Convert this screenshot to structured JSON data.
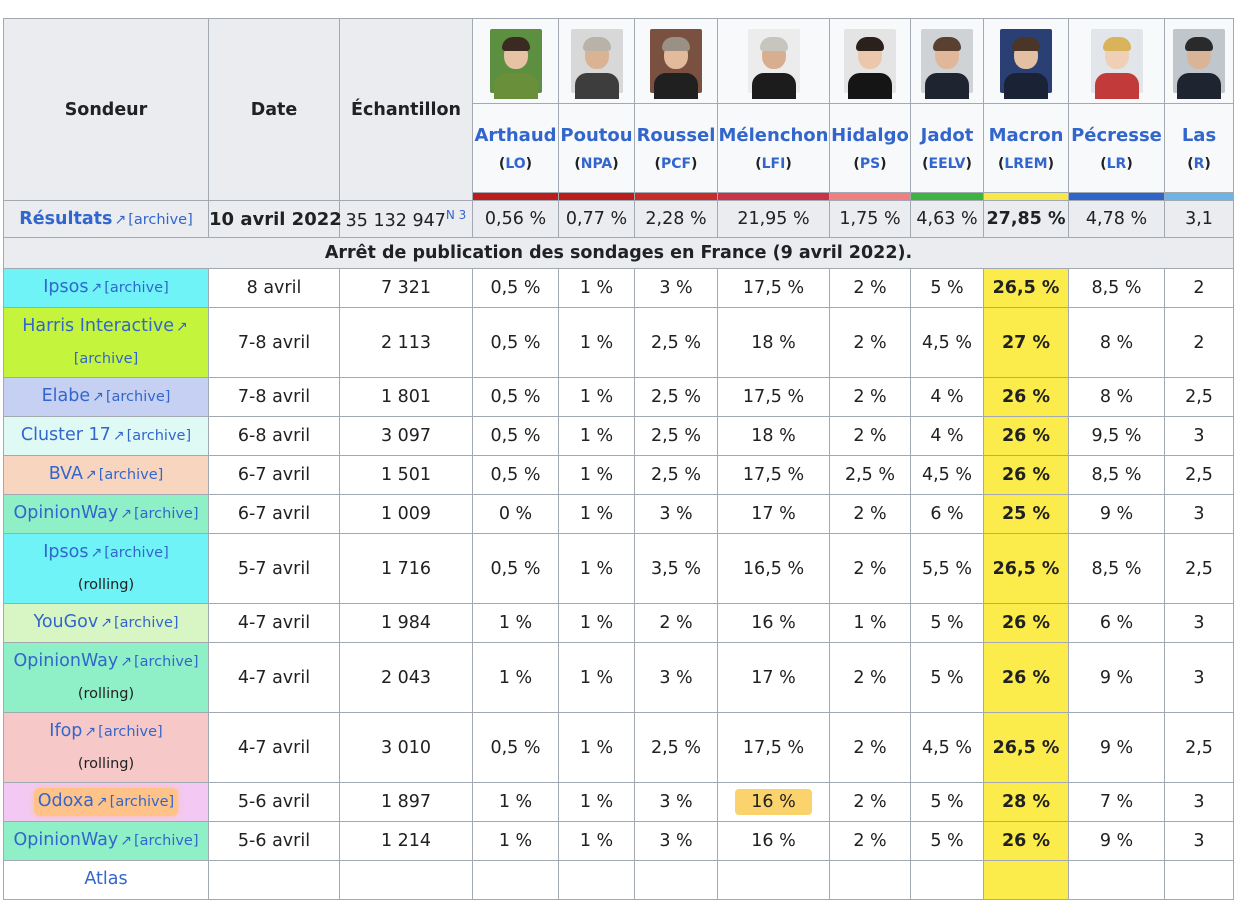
{
  "header": {
    "sondeur": "Sondeur",
    "date": "Date",
    "echantillon": "Échantillon"
  },
  "candidates": [
    {
      "name": "Arthaud",
      "party": "LO",
      "color": "#bb1d1d"
    },
    {
      "name": "Poutou",
      "party": "NPA",
      "color": "#bb1d1d"
    },
    {
      "name": "Roussel",
      "party": "PCF",
      "color": "#c72c2c"
    },
    {
      "name": "Mélenchon",
      "party": "LFI",
      "color": "#c9334a"
    },
    {
      "name": "Hidalgo",
      "party": "PS",
      "color": "#f08080"
    },
    {
      "name": "Jadot",
      "party": "EELV",
      "color": "#3fb33f"
    },
    {
      "name": "Macron",
      "party": "LREM",
      "color": "#f7e84a"
    },
    {
      "name": "Pécresse",
      "party": "LR",
      "color": "#2f64c8"
    },
    {
      "name": "Las",
      "party": "R",
      "color": "#6cb4e6"
    }
  ],
  "results": {
    "label": "Résultats",
    "archive": "[archive]",
    "date": "10 avril 2022",
    "sample": "35 132 947",
    "note": "N 3",
    "values": [
      "0,56 %",
      "0,77 %",
      "2,28 %",
      "21,95 %",
      "1,75 %",
      "4,63 %",
      "27,85 %",
      "4,78 %",
      "3,1"
    ]
  },
  "pause_notice": "Arrêt de publication des sondages en France (9 avril 2022).",
  "rows": [
    {
      "pollster": "Ipsos",
      "sub": "",
      "archive": "[archive]",
      "bg": "#6ff3f7",
      "tall": false,
      "date": "8 avril",
      "sample": "7 321",
      "values": [
        "0,5 %",
        "1 %",
        "3 %",
        "17,5 %",
        "2 %",
        "5 %",
        "26,5 %",
        "8,5 %",
        "2"
      ]
    },
    {
      "pollster": "Harris Interactive",
      "sub": "",
      "archive": "[archive]",
      "bg": "#c4f53c",
      "tall": true,
      "date": "7-8 avril",
      "sample": "2 113",
      "values": [
        "0,5 %",
        "1 %",
        "2,5 %",
        "18 %",
        "2 %",
        "4,5 %",
        "27 %",
        "8 %",
        "2"
      ]
    },
    {
      "pollster": "Elabe",
      "sub": "",
      "archive": "[archive]",
      "bg": "#c6d0f3",
      "tall": false,
      "date": "7-8 avril",
      "sample": "1 801",
      "values": [
        "0,5 %",
        "1 %",
        "2,5 %",
        "17,5 %",
        "2 %",
        "4 %",
        "26 %",
        "8 %",
        "2,5"
      ]
    },
    {
      "pollster": "Cluster 17",
      "sub": "",
      "archive": "[archive]",
      "bg": "#dff9f4",
      "tall": false,
      "date": "6-8 avril",
      "sample": "3 097",
      "values": [
        "0,5 %",
        "1 %",
        "2,5 %",
        "18 %",
        "2 %",
        "4 %",
        "26 %",
        "9,5 %",
        "3"
      ]
    },
    {
      "pollster": "BVA",
      "sub": "",
      "archive": "[archive]",
      "bg": "#f8d5bf",
      "tall": false,
      "date": "6-7 avril",
      "sample": "1 501",
      "values": [
        "0,5 %",
        "1 %",
        "2,5 %",
        "17,5 %",
        "2,5 %",
        "4,5 %",
        "26 %",
        "8,5 %",
        "2,5"
      ]
    },
    {
      "pollster": "OpinionWay",
      "sub": "",
      "archive": "[archive]",
      "bg": "#8ff0c7",
      "tall": false,
      "date": "6-7 avril",
      "sample": "1 009",
      "values": [
        "0 %",
        "1 %",
        "3 %",
        "17 %",
        "2 %",
        "6 %",
        "25 %",
        "9 %",
        "3"
      ]
    },
    {
      "pollster": "Ipsos",
      "sub": "(rolling)",
      "archive": "[archive]",
      "bg": "#6ff3f7",
      "tall": true,
      "date": "5-7 avril",
      "sample": "1 716",
      "values": [
        "0,5 %",
        "1 %",
        "3,5 %",
        "16,5 %",
        "2 %",
        "5,5 %",
        "26,5 %",
        "8,5 %",
        "2,5"
      ]
    },
    {
      "pollster": "YouGov",
      "sub": "",
      "archive": "[archive]",
      "bg": "#d7f6c3",
      "tall": false,
      "date": "4-7 avril",
      "sample": "1 984",
      "values": [
        "1 %",
        "1 %",
        "2 %",
        "16 %",
        "1 %",
        "5 %",
        "26 %",
        "6 %",
        "3"
      ]
    },
    {
      "pollster": "OpinionWay",
      "sub": "(rolling)",
      "archive": "[archive]",
      "bg": "#8ff0c7",
      "tall": true,
      "date": "4-7 avril",
      "sample": "2 043",
      "values": [
        "1 %",
        "1 %",
        "3 %",
        "17 %",
        "2 %",
        "5 %",
        "26 %",
        "9 %",
        "3"
      ]
    },
    {
      "pollster": "Ifop",
      "sub": "(rolling)",
      "archive": "[archive]",
      "bg": "#f6c8c8",
      "tall": true,
      "date": "4-7 avril",
      "sample": "3 010",
      "values": [
        "0,5 %",
        "1 %",
        "2,5 %",
        "17,5 %",
        "2 %",
        "4,5 %",
        "26,5 %",
        "9 %",
        "2,5"
      ]
    },
    {
      "pollster": "Odoxa",
      "sub": "",
      "archive": "[archive]",
      "bg": "#f3c9f3",
      "tall": false,
      "date": "5-6 avril",
      "sample": "1 897",
      "values": [
        "1 %",
        "1 %",
        "3 %",
        "16 %",
        "2 %",
        "5 %",
        "28 %",
        "7 %",
        "3"
      ]
    },
    {
      "pollster": "OpinionWay",
      "sub": "",
      "archive": "[archive]",
      "bg": "#8ff0c7",
      "tall": false,
      "date": "5-6 avril",
      "sample": "1 214",
      "values": [
        "1 %",
        "1 %",
        "3 %",
        "16 %",
        "2 %",
        "5 %",
        "26 %",
        "9 %",
        "3"
      ]
    },
    {
      "pollster": "Atlas",
      "sub": "",
      "archive": "",
      "bg": "#ffffff",
      "tall": false,
      "date": "",
      "sample": "",
      "values": [
        "",
        "",
        "",
        "",
        "",
        "",
        "",
        "",
        ""
      ]
    }
  ],
  "lead_index": 6,
  "lead_color": "#fcec4b",
  "highlight_colors": {
    "melenchon_odoxa": "#fbd36c",
    "odoxa_pollster": "#ffc38a"
  },
  "external_link_icon": "external-link-icon"
}
